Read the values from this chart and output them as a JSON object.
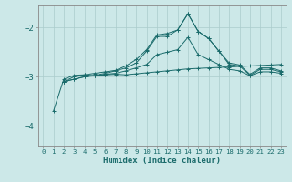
{
  "title": "",
  "xlabel": "Humidex (Indice chaleur)",
  "bg_color": "#cce8e8",
  "grid_color": "#aacccc",
  "line_color": "#1a6b6b",
  "spine_color": "#888888",
  "xlim": [
    -0.5,
    23.5
  ],
  "ylim": [
    -4.4,
    -1.55
  ],
  "yticks": [
    -4,
    -3,
    -2
  ],
  "xticks": [
    0,
    1,
    2,
    3,
    4,
    5,
    6,
    7,
    8,
    9,
    10,
    11,
    12,
    13,
    14,
    15,
    16,
    17,
    18,
    19,
    20,
    21,
    22,
    23
  ],
  "series": [
    [
      null,
      -3.7,
      -3.05,
      -2.97,
      -2.96,
      -2.98,
      -2.96,
      -2.95,
      -2.96,
      -2.94,
      -2.92,
      -2.9,
      -2.88,
      -2.86,
      -2.84,
      -2.83,
      -2.82,
      -2.81,
      -2.8,
      -2.79,
      -2.78,
      -2.77,
      -2.76,
      -2.75
    ],
    [
      null,
      null,
      -3.1,
      -3.05,
      -3.0,
      -2.97,
      -2.93,
      -2.88,
      -2.82,
      -2.72,
      -2.48,
      -2.18,
      -2.18,
      -2.05,
      -1.72,
      -2.08,
      -2.22,
      -2.48,
      -2.72,
      -2.76,
      -2.95,
      -2.82,
      -2.82,
      -2.88
    ],
    [
      null,
      null,
      -3.1,
      -3.0,
      -2.96,
      -2.93,
      -2.9,
      -2.87,
      -2.78,
      -2.65,
      -2.45,
      -2.15,
      -2.12,
      -2.05,
      -1.72,
      -2.08,
      -2.22,
      -2.48,
      -2.75,
      -2.78,
      -2.97,
      -2.85,
      -2.85,
      -2.9
    ],
    [
      null,
      null,
      -3.1,
      -3.05,
      -3.0,
      -2.98,
      -2.95,
      -2.93,
      -2.88,
      -2.82,
      -2.75,
      -2.55,
      -2.5,
      -2.45,
      -2.2,
      -2.55,
      -2.65,
      -2.75,
      -2.85,
      -2.88,
      -2.98,
      -2.9,
      -2.9,
      -2.93
    ]
  ]
}
